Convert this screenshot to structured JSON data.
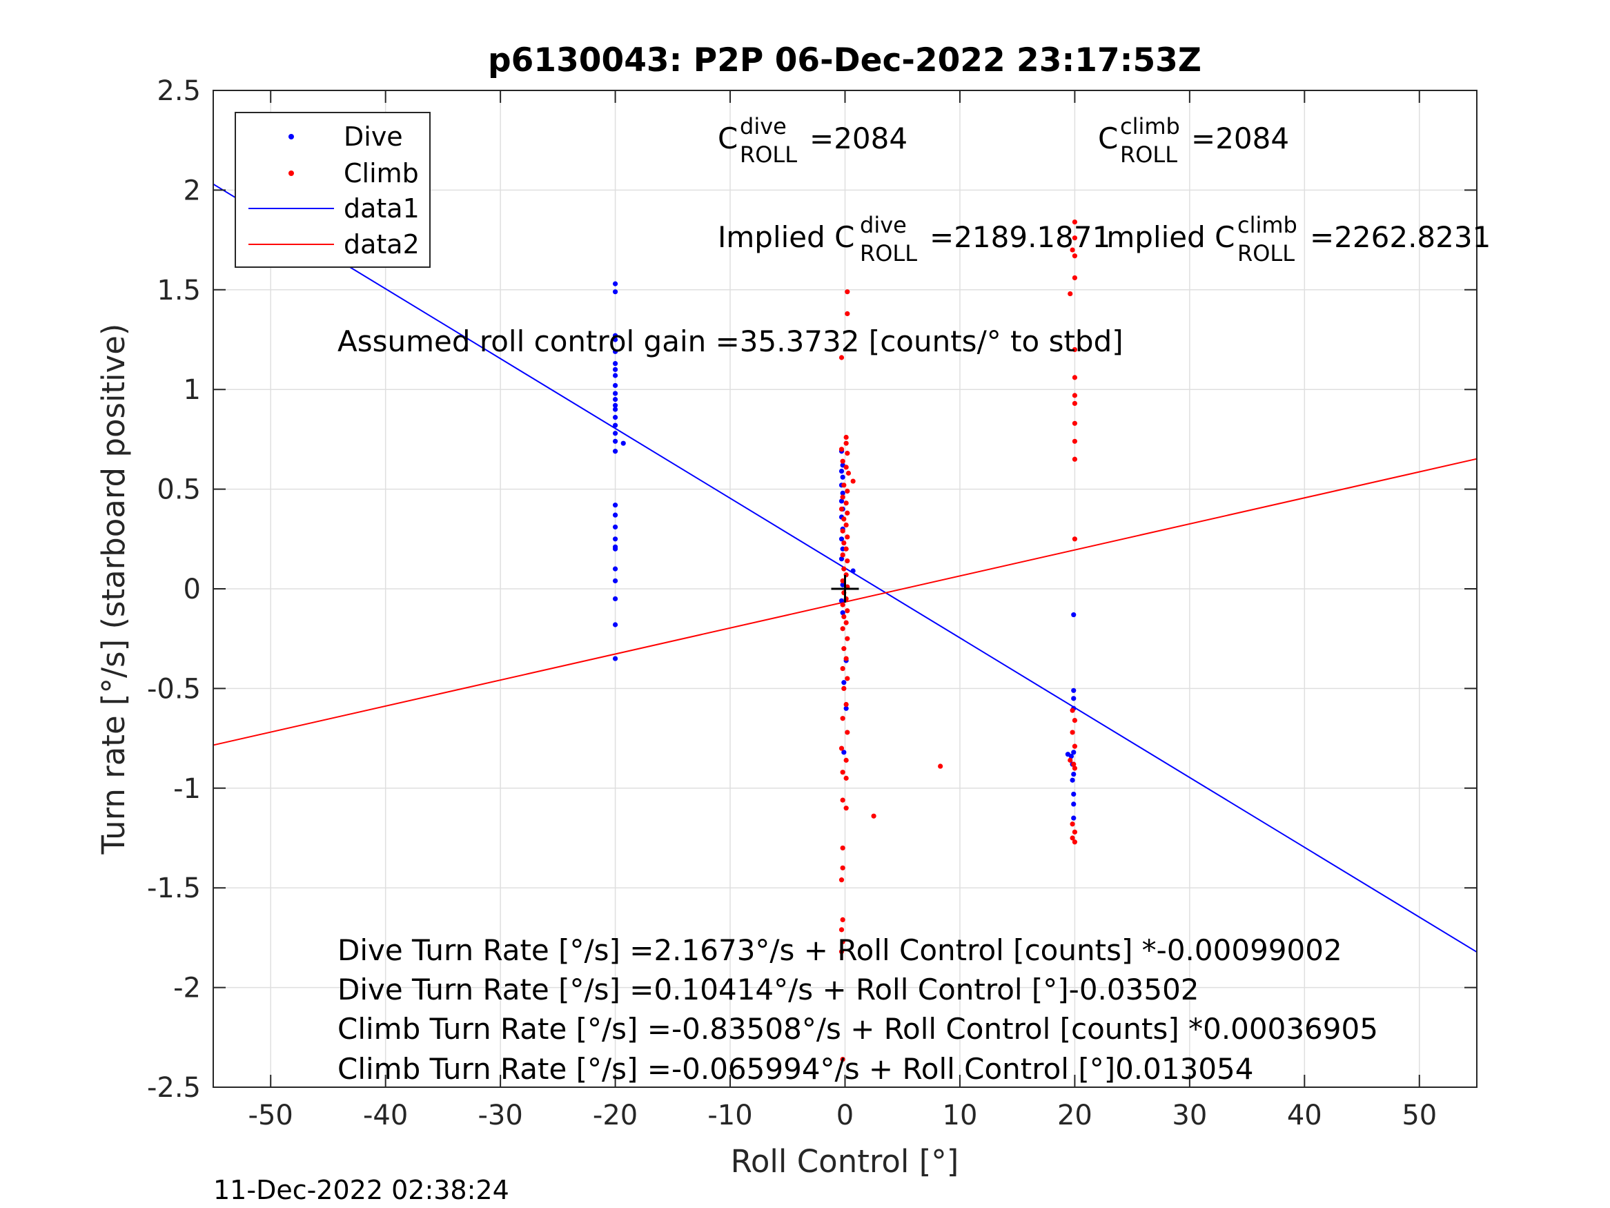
{
  "chart_data": {
    "type": "scatter",
    "title": "p6130043: P2P 06-Dec-2022 23:17:53Z",
    "xlabel": "Roll Control [°]",
    "ylabel": "Turn rate [°/s] (starboard positive)",
    "xlim": [
      -55,
      55
    ],
    "ylim": [
      -2.5,
      2.5
    ],
    "xticks": [
      -50,
      -40,
      -30,
      -20,
      -10,
      0,
      10,
      20,
      30,
      40,
      50
    ],
    "yticks": [
      -2.5,
      -2,
      -1.5,
      -1,
      -0.5,
      0,
      0.5,
      1,
      1.5,
      2,
      2.5
    ],
    "xtick_labels": [
      "-50",
      "-40",
      "-30",
      "-20",
      "-10",
      "0",
      "10",
      "20",
      "30",
      "40",
      "50"
    ],
    "ytick_labels": [
      "-2.5",
      "-2",
      "-1.5",
      "-1",
      "-0.5",
      "0",
      "0.5",
      "1",
      "1.5",
      "2",
      "2.5"
    ],
    "grid": true,
    "legend_position": "top-left",
    "legend": [
      "Dive",
      "Climb",
      "data1",
      "data2"
    ],
    "series": [
      {
        "name": "Dive",
        "color": "#0000ff",
        "kind": "markers",
        "points": [
          [
            -20,
            1.53
          ],
          [
            -20,
            1.49
          ],
          [
            -20,
            1.27
          ],
          [
            -20,
            1.25
          ],
          [
            -20,
            1.19
          ],
          [
            -20,
            1.13
          ],
          [
            -20,
            1.1
          ],
          [
            -20,
            1.07
          ],
          [
            -20,
            1.02
          ],
          [
            -20,
            0.98
          ],
          [
            -20,
            0.95
          ],
          [
            -20,
            0.92
          ],
          [
            -20,
            0.9
          ],
          [
            -20,
            0.86
          ],
          [
            -20,
            0.82
          ],
          [
            -20,
            0.78
          ],
          [
            -20,
            0.74
          ],
          [
            -20,
            0.69
          ],
          [
            -19.3,
            0.73
          ],
          [
            -20,
            0.42
          ],
          [
            -20,
            0.37
          ],
          [
            -20,
            0.31
          ],
          [
            -20,
            0.25
          ],
          [
            -20,
            0.21
          ],
          [
            -20,
            0.2
          ],
          [
            -20,
            0.1
          ],
          [
            -20,
            0.04
          ],
          [
            -20,
            -0.05
          ],
          [
            -20,
            -0.18
          ],
          [
            -20,
            -0.35
          ],
          [
            -0.3,
            0.69
          ],
          [
            -0.2,
            0.62
          ],
          [
            -0.3,
            0.59
          ],
          [
            -0.2,
            0.56
          ],
          [
            -0.3,
            0.52
          ],
          [
            -0.2,
            0.48
          ],
          [
            -0.3,
            0.44
          ],
          [
            -0.2,
            0.4
          ],
          [
            -0.3,
            0.36
          ],
          [
            -0.2,
            0.3
          ],
          [
            -0.3,
            0.25
          ],
          [
            -0.2,
            0.2
          ],
          [
            -0.3,
            0.15
          ],
          [
            0.7,
            0.09
          ],
          [
            -0.2,
            0.02
          ],
          [
            -0.3,
            -0.06
          ],
          [
            -0.2,
            -0.12
          ],
          [
            0.1,
            -0.36
          ],
          [
            -0.1,
            -0.47
          ],
          [
            0.1,
            -0.6
          ],
          [
            -0.1,
            -0.82
          ],
          [
            19.9,
            -0.13
          ],
          [
            19.9,
            -0.51
          ],
          [
            19.9,
            -0.55
          ],
          [
            19.9,
            -0.6
          ],
          [
            19.4,
            -0.83
          ],
          [
            19.7,
            -0.84
          ],
          [
            19.9,
            -0.82
          ],
          [
            19.8,
            -0.88
          ],
          [
            19.9,
            -0.93
          ],
          [
            19.8,
            -0.96
          ],
          [
            19.9,
            -1.03
          ],
          [
            19.9,
            -1.08
          ],
          [
            19.9,
            -1.15
          ]
        ]
      },
      {
        "name": "Climb",
        "color": "#ff0000",
        "kind": "markers",
        "points": [
          [
            0.2,
            1.49
          ],
          [
            0.2,
            1.38
          ],
          [
            -0.3,
            1.16
          ],
          [
            0.1,
            0.76
          ],
          [
            0.1,
            0.73
          ],
          [
            -0.3,
            0.7
          ],
          [
            0.2,
            0.68
          ],
          [
            -0.2,
            0.64
          ],
          [
            0.1,
            0.61
          ],
          [
            0.3,
            0.58
          ],
          [
            0.7,
            0.54
          ],
          [
            -0.1,
            0.52
          ],
          [
            0.2,
            0.49
          ],
          [
            -0.2,
            0.46
          ],
          [
            0.1,
            0.43
          ],
          [
            -0.3,
            0.4
          ],
          [
            0.2,
            0.38
          ],
          [
            -0.1,
            0.35
          ],
          [
            0.1,
            0.32
          ],
          [
            -0.2,
            0.29
          ],
          [
            0.2,
            0.26
          ],
          [
            -0.1,
            0.23
          ],
          [
            0.1,
            0.2
          ],
          [
            -0.2,
            0.17
          ],
          [
            0.2,
            0.14
          ],
          [
            -0.1,
            0.1
          ],
          [
            0.1,
            0.07
          ],
          [
            -0.2,
            0.04
          ],
          [
            0.2,
            0.01
          ],
          [
            -0.1,
            -0.02
          ],
          [
            0.1,
            -0.05
          ],
          [
            -0.2,
            -0.08
          ],
          [
            0.2,
            -0.11
          ],
          [
            -0.1,
            -0.14
          ],
          [
            0.1,
            -0.17
          ],
          [
            -0.2,
            -0.2
          ],
          [
            0.2,
            -0.25
          ],
          [
            -0.1,
            -0.3
          ],
          [
            0.1,
            -0.35
          ],
          [
            -0.2,
            -0.4
          ],
          [
            0.2,
            -0.45
          ],
          [
            -0.1,
            -0.5
          ],
          [
            0.1,
            -0.58
          ],
          [
            -0.2,
            -0.65
          ],
          [
            0.2,
            -0.72
          ],
          [
            -0.3,
            -0.8
          ],
          [
            0.1,
            -0.86
          ],
          [
            -0.2,
            -0.92
          ],
          [
            0.1,
            -0.95
          ],
          [
            -0.2,
            -1.06
          ],
          [
            0.1,
            -1.1
          ],
          [
            -0.2,
            -1.3
          ],
          [
            -0.2,
            -1.4
          ],
          [
            -0.3,
            -1.46
          ],
          [
            -0.2,
            -1.66
          ],
          [
            -0.3,
            -1.71
          ],
          [
            -0.2,
            -1.77
          ],
          [
            -0.3,
            -1.82
          ],
          [
            -0.2,
            -2.36
          ],
          [
            2.5,
            -1.14
          ],
          [
            8.3,
            -0.89
          ],
          [
            20,
            1.84
          ],
          [
            20,
            1.76
          ],
          [
            19.8,
            1.7
          ],
          [
            20,
            1.67
          ],
          [
            20,
            1.56
          ],
          [
            19.6,
            1.48
          ],
          [
            20,
            1.2
          ],
          [
            20,
            1.06
          ],
          [
            20,
            0.97
          ],
          [
            20,
            0.93
          ],
          [
            20,
            0.83
          ],
          [
            20,
            0.74
          ],
          [
            20,
            0.65
          ],
          [
            20,
            0.25
          ],
          [
            19.8,
            -0.61
          ],
          [
            20,
            -0.66
          ],
          [
            19.8,
            -0.72
          ],
          [
            20,
            -0.79
          ],
          [
            19.6,
            -0.86
          ],
          [
            19.9,
            -0.88
          ],
          [
            20,
            -0.9
          ],
          [
            19.8,
            -1.18
          ],
          [
            20,
            -1.22
          ],
          [
            19.8,
            -1.25
          ],
          [
            20,
            -1.27
          ]
        ]
      },
      {
        "name": "data1",
        "color": "#0000ff",
        "kind": "line",
        "x": [
          -55,
          55
        ],
        "y": [
          2.0302,
          -1.822
        ]
      },
      {
        "name": "data2",
        "color": "#ff0000",
        "kind": "line",
        "x": [
          -55,
          55
        ],
        "y": [
          -0.784,
          0.652
        ]
      }
    ],
    "origin_marker": {
      "x": 0,
      "y": 0,
      "symbol": "+"
    },
    "annotations": {
      "c_dive_base": "C",
      "c_dive_sup": "dive",
      "c_dive_sub": "ROLL",
      "c_dive_value": "=2084",
      "c_climb_base": "C",
      "c_climb_sup": "climb",
      "c_climb_sub": "ROLL",
      "c_climb_value": "=2084",
      "implied_dive_prefix": "Implied C",
      "implied_dive_sup": "dive",
      "implied_dive_sub": "ROLL",
      "implied_dive_value": "=2189.1871",
      "implied_climb_prefix": "Implied C",
      "implied_climb_sup": "climb",
      "implied_climb_sub": "ROLL",
      "implied_climb_value": "=2262.8231",
      "gain": "Assumed roll control gain =35.3732 [counts/° to stbd]",
      "fit_lines": [
        "Dive Turn Rate [°/s] =2.1673°/s + Roll Control [counts] *-0.00099002",
        "Dive Turn Rate [°/s] =0.10414°/s + Roll Control [°]-0.03502",
        "Climb Turn Rate [°/s] =-0.83508°/s + Roll Control [counts] *0.00036905",
        "Climb Turn Rate [°/s] =-0.065994°/s + Roll Control [°]0.013054"
      ]
    }
  },
  "footer": {
    "timestamp": "11-Dec-2022 02:38:24"
  }
}
